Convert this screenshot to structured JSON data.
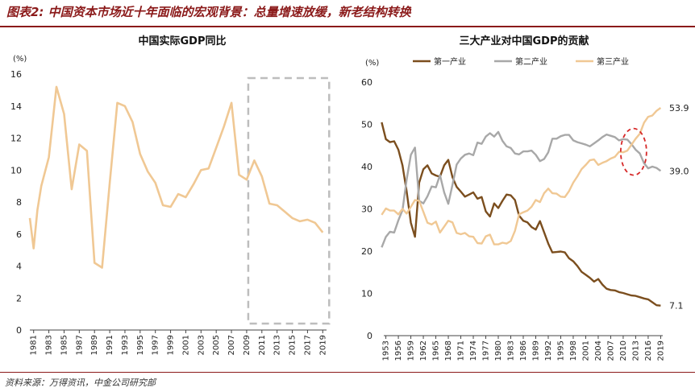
{
  "figure_title": "图表2: 中国资本市场近十年面临的宏观背景：总量增速放缓，新老结构转换",
  "source": "资料来源：万得资讯，中金公司研究部",
  "colors": {
    "header_rule": "#8b1a1a",
    "gdp_line": "#f0c894",
    "primary": "#7b4e1e",
    "secondary": "#a8a8a8",
    "tertiary": "#f0c894",
    "highlight_box": "#bdbdbd",
    "highlight_ellipse": "#d62828"
  },
  "chart_data": [
    {
      "type": "line",
      "title": "中国实际GDP同比",
      "unit": "(%)",
      "ylim": [
        0,
        16
      ],
      "yticks": [
        "0",
        "2",
        "4",
        "6",
        "8",
        "10",
        "12",
        "14",
        "16"
      ],
      "xlim": [
        1981,
        2019
      ],
      "xtick_labels": [
        "1981",
        "1983",
        "1985",
        "1987",
        "1989",
        "1991",
        "1993",
        "1995",
        "1997",
        "1999",
        "2001",
        "2003",
        "2005",
        "2007",
        "2009",
        "2011",
        "2013",
        "2015",
        "2017",
        "2019"
      ],
      "grid": false,
      "highlight": {
        "shape": "dashed-rectangle",
        "x_range": [
          2009,
          2019
        ]
      },
      "series": [
        {
          "x": [
            1980.5,
            1981,
            1981.5,
            1982,
            1983,
            1984,
            1985,
            1986,
            1987,
            1988,
            1989,
            1990,
            1991,
            1992,
            1993,
            1994,
            1995,
            1996,
            1997,
            1998,
            1999,
            2000,
            2001,
            2002,
            2003,
            2004,
            2005,
            2006,
            2007,
            2008,
            2009,
            2010,
            2011,
            2012,
            2013,
            2014,
            2015,
            2016,
            2017,
            2018,
            2019
          ],
          "values": [
            7.0,
            5.1,
            7.5,
            9.0,
            10.8,
            15.2,
            13.5,
            8.8,
            11.6,
            11.2,
            4.2,
            3.9,
            9.2,
            14.2,
            14.0,
            13.0,
            11.0,
            9.9,
            9.2,
            7.8,
            7.7,
            8.5,
            8.3,
            9.1,
            10.0,
            10.1,
            11.4,
            12.7,
            14.2,
            9.7,
            9.4,
            10.6,
            9.6,
            7.9,
            7.8,
            7.4,
            7.0,
            6.8,
            6.9,
            6.7,
            6.1
          ]
        }
      ]
    },
    {
      "type": "line",
      "title": "三大产业对中国GDP的贡献",
      "unit": "(%)",
      "ylim": [
        0,
        60
      ],
      "yticks": [
        "0",
        "10",
        "20",
        "30",
        "40",
        "50",
        "60"
      ],
      "xlim": [
        1953,
        2019
      ],
      "xtick_labels": [
        "1953",
        "1956",
        "1959",
        "1962",
        "1965",
        "1968",
        "1971",
        "1974",
        "1977",
        "1980",
        "1983",
        "1986",
        "1989",
        "1992",
        "1995",
        "1998",
        "2001",
        "2004",
        "2007",
        "2010",
        "2013",
        "2016",
        "2019"
      ],
      "legend": "top",
      "grid": false,
      "highlight": {
        "shape": "dashed-ellipse",
        "x_center": 2012.5,
        "y_center": 43.5
      },
      "series": [
        {
          "name": "第一产业",
          "x": [
            1952,
            1953,
            1954,
            1955,
            1956,
            1957,
            1958,
            1959,
            1960,
            1961,
            1962,
            1963,
            1964,
            1965,
            1966,
            1967,
            1968,
            1969,
            1970,
            1971,
            1972,
            1973,
            1974,
            1975,
            1976,
            1977,
            1978,
            1979,
            1980,
            1981,
            1982,
            1983,
            1984,
            1985,
            1986,
            1987,
            1988,
            1989,
            1990,
            1991,
            1992,
            1993,
            1994,
            1995,
            1996,
            1997,
            1998,
            1999,
            2000,
            2001,
            2002,
            2003,
            2004,
            2005,
            2006,
            2007,
            2008,
            2009,
            2010,
            2011,
            2012,
            2013,
            2014,
            2015,
            2016,
            2017,
            2018,
            2019
          ],
          "values": [
            50.5,
            46.5,
            45.8,
            46.0,
            44.0,
            40.3,
            34.1,
            26.7,
            23.4,
            36.2,
            39.4,
            40.3,
            38.4,
            37.9,
            37.6,
            40.3,
            41.6,
            37.5,
            35.2,
            34.1,
            32.9,
            33.4,
            33.9,
            32.4,
            32.8,
            29.4,
            28.2,
            31.3,
            30.2,
            31.9,
            33.4,
            33.2,
            32.1,
            28.4,
            27.2,
            26.8,
            25.7,
            25.1,
            27.1,
            24.5,
            21.8,
            19.7,
            19.8,
            19.9,
            19.7,
            18.3,
            17.6,
            16.5,
            15.1,
            14.4,
            13.7,
            12.8,
            13.4,
            12.1,
            11.1,
            10.8,
            10.7,
            10.3,
            10.1,
            9.8,
            9.5,
            9.4,
            9.1,
            8.8,
            8.6,
            7.9,
            7.2,
            7.1
          ]
        },
        {
          "name": "第二产业",
          "x": [
            1952,
            1953,
            1954,
            1955,
            1956,
            1957,
            1958,
            1959,
            1960,
            1961,
            1962,
            1963,
            1964,
            1965,
            1966,
            1967,
            1968,
            1969,
            1970,
            1971,
            1972,
            1973,
            1974,
            1975,
            1976,
            1977,
            1978,
            1979,
            1980,
            1981,
            1982,
            1983,
            1984,
            1985,
            1986,
            1987,
            1988,
            1989,
            1990,
            1991,
            1992,
            1993,
            1994,
            1995,
            1996,
            1997,
            1998,
            1999,
            2000,
            2001,
            2002,
            2003,
            2004,
            2005,
            2006,
            2007,
            2008,
            2009,
            2010,
            2011,
            2012,
            2013,
            2014,
            2015,
            2016,
            2017,
            2018,
            2019
          ],
          "values": [
            20.9,
            23.4,
            24.6,
            24.4,
            27.3,
            29.7,
            37.0,
            42.8,
            44.5,
            31.9,
            31.3,
            33.0,
            35.3,
            35.1,
            38.0,
            33.9,
            31.2,
            35.7,
            40.5,
            41.9,
            42.8,
            43.1,
            42.7,
            45.7,
            45.4,
            47.1,
            47.9,
            47.1,
            48.2,
            46.1,
            44.8,
            44.4,
            43.1,
            42.9,
            43.6,
            43.6,
            43.8,
            42.8,
            41.3,
            41.8,
            43.4,
            46.6,
            46.6,
            47.2,
            47.5,
            47.5,
            46.2,
            45.8,
            45.5,
            45.2,
            44.8,
            45.5,
            46.2,
            47.0,
            47.6,
            47.3,
            47.0,
            46.2,
            46.5,
            46.4,
            45.3,
            44.0,
            43.1,
            40.8,
            39.6,
            40.0,
            39.7,
            39.0
          ]
        },
        {
          "name": "第三产业",
          "x": [
            1952,
            1953,
            1954,
            1955,
            1956,
            1957,
            1958,
            1959,
            1960,
            1961,
            1962,
            1963,
            1964,
            1965,
            1966,
            1967,
            1968,
            1969,
            1970,
            1971,
            1972,
            1973,
            1974,
            1975,
            1976,
            1977,
            1978,
            1979,
            1980,
            1981,
            1982,
            1983,
            1984,
            1985,
            1986,
            1987,
            1988,
            1989,
            1990,
            1991,
            1992,
            1993,
            1994,
            1995,
            1996,
            1997,
            1998,
            1999,
            2000,
            2001,
            2002,
            2003,
            2004,
            2005,
            2006,
            2007,
            2008,
            2009,
            2010,
            2011,
            2012,
            2013,
            2014,
            2015,
            2016,
            2017,
            2018,
            2019
          ],
          "values": [
            28.6,
            30.1,
            29.6,
            29.6,
            28.7,
            30.0,
            28.9,
            30.5,
            32.1,
            31.9,
            29.3,
            26.7,
            26.3,
            27.0,
            24.4,
            25.8,
            27.2,
            26.8,
            24.3,
            24.0,
            24.3,
            23.5,
            23.4,
            21.9,
            21.8,
            23.5,
            23.9,
            21.6,
            21.6,
            22.0,
            21.8,
            22.4,
            24.8,
            28.7,
            29.2,
            29.6,
            30.5,
            32.1,
            31.6,
            33.7,
            34.8,
            33.7,
            33.6,
            32.9,
            32.8,
            34.2,
            36.2,
            37.7,
            39.4,
            40.4,
            41.5,
            41.7,
            40.4,
            40.9,
            41.3,
            41.9,
            42.3,
            43.5,
            43.4,
            43.8,
            45.2,
            46.6,
            47.8,
            50.4,
            51.8,
            52.1,
            53.2,
            53.9
          ]
        }
      ],
      "end_labels": [
        "7.1",
        "39.0",
        "53.9"
      ]
    }
  ]
}
